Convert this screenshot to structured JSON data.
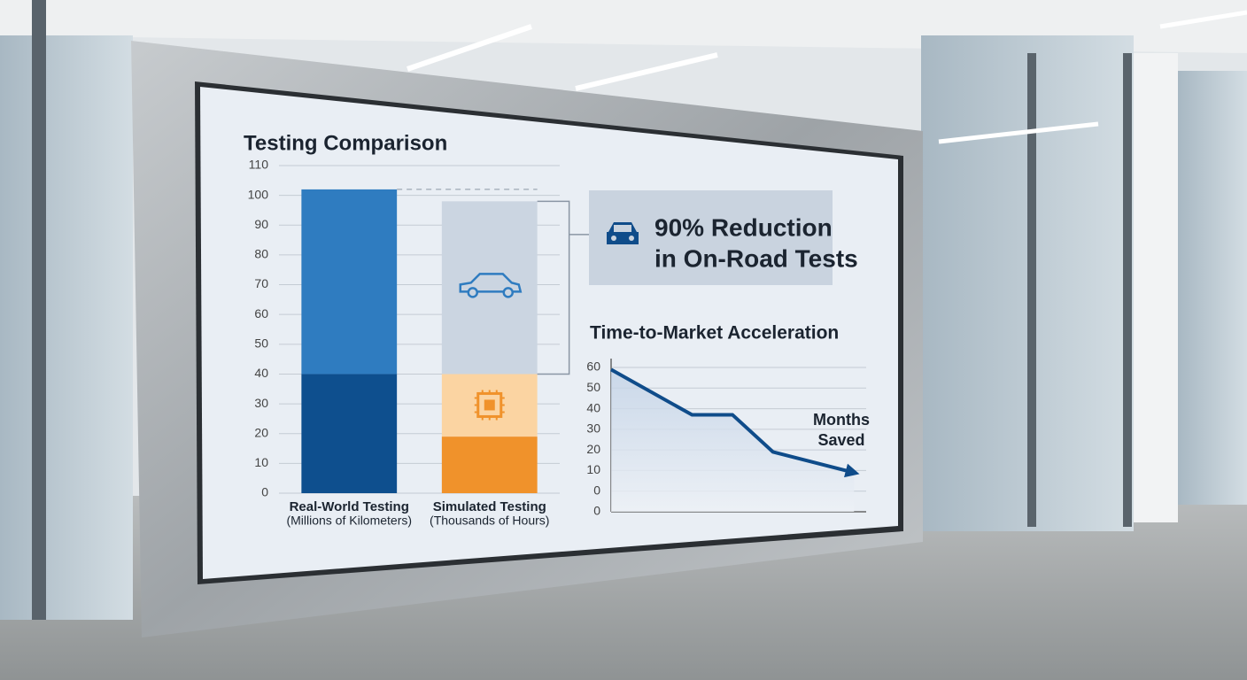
{
  "chart_data": [
    {
      "type": "bar",
      "title": "Testing Comparison",
      "categories": [
        "Real-World Testing",
        "Simulated Testing"
      ],
      "category_units": [
        "(Millions of Kilometers)",
        "(Thousands of Hours)"
      ],
      "series": [
        {
          "colors": [
            "#0e4f8e",
            "#f0922b"
          ],
          "values": [
            40,
            19
          ]
        },
        {
          "colors": [
            "#2f7cc0",
            "#fbd4a2"
          ],
          "values": [
            62,
            21
          ]
        },
        {
          "colors": [
            "#2f7cc0",
            "#cbd5e1"
          ],
          "values": [
            null,
            58
          ]
        }
      ],
      "ylim": [
        0,
        110
      ],
      "yticks": [
        0,
        10,
        20,
        30,
        40,
        50,
        60,
        70,
        80,
        90,
        100,
        110
      ],
      "grid": true,
      "annotation": [
        "90% Reduction",
        "in On-Road Tests"
      ]
    },
    {
      "type": "line",
      "title": "Time-to-Market Acceleration",
      "x": [
        0,
        2,
        3,
        4,
        6
      ],
      "xlim": [
        0,
        6.3
      ],
      "series": [
        {
          "color": "#0f4c8a",
          "values": [
            59,
            37,
            37,
            19,
            9
          ]
        }
      ],
      "ylim": [
        -10,
        60
      ],
      "yticks": [
        {
          "value": -10,
          "label": "0"
        },
        0,
        10,
        20,
        30,
        40,
        50,
        60
      ],
      "grid": true,
      "annotation": [
        "Months",
        "Saved"
      ]
    }
  ]
}
